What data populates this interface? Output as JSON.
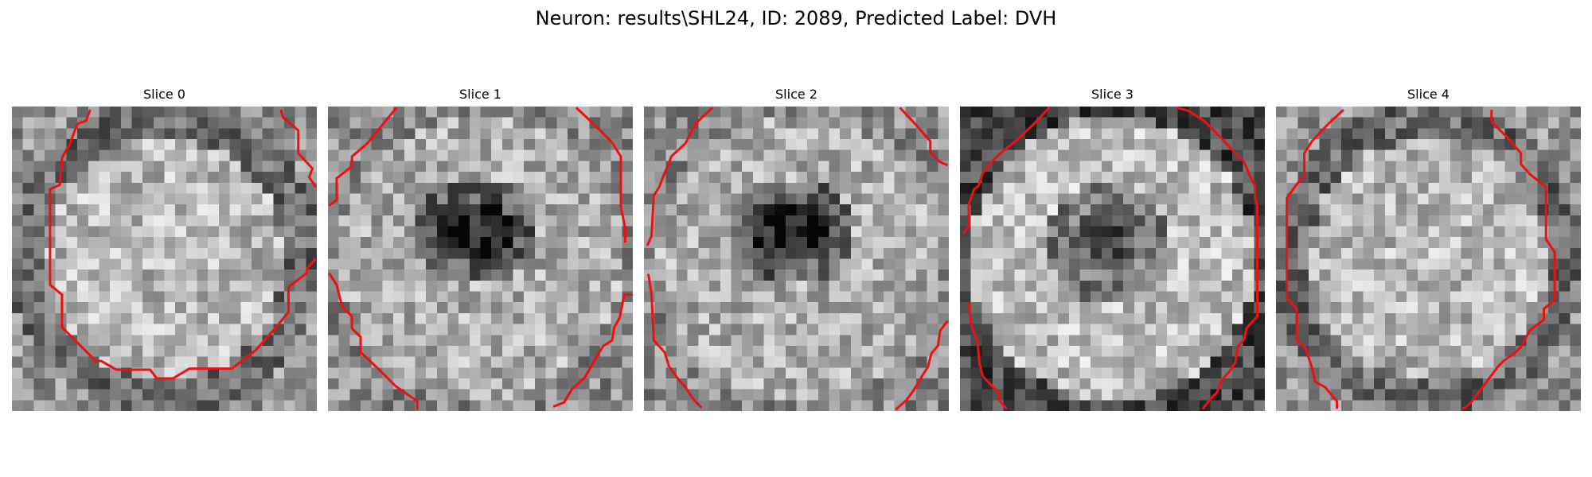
{
  "figure": {
    "title": "Neuron: results\\SHL24, ID: 2089, Predicted Label: DVH"
  },
  "colors": {
    "contour": "#ee1111",
    "background": "#ffffff"
  },
  "grid_size": 28,
  "slices": [
    {
      "title": "Slice 0",
      "seed": 11,
      "kind": "bright-center"
    },
    {
      "title": "Slice 1",
      "seed": 23,
      "kind": "dark-center"
    },
    {
      "title": "Slice 2",
      "seed": 37,
      "kind": "dark-center"
    },
    {
      "title": "Slice 3",
      "seed": 53,
      "kind": "ring"
    },
    {
      "title": "Slice 4",
      "seed": 71,
      "kind": "bright-center"
    }
  ]
}
